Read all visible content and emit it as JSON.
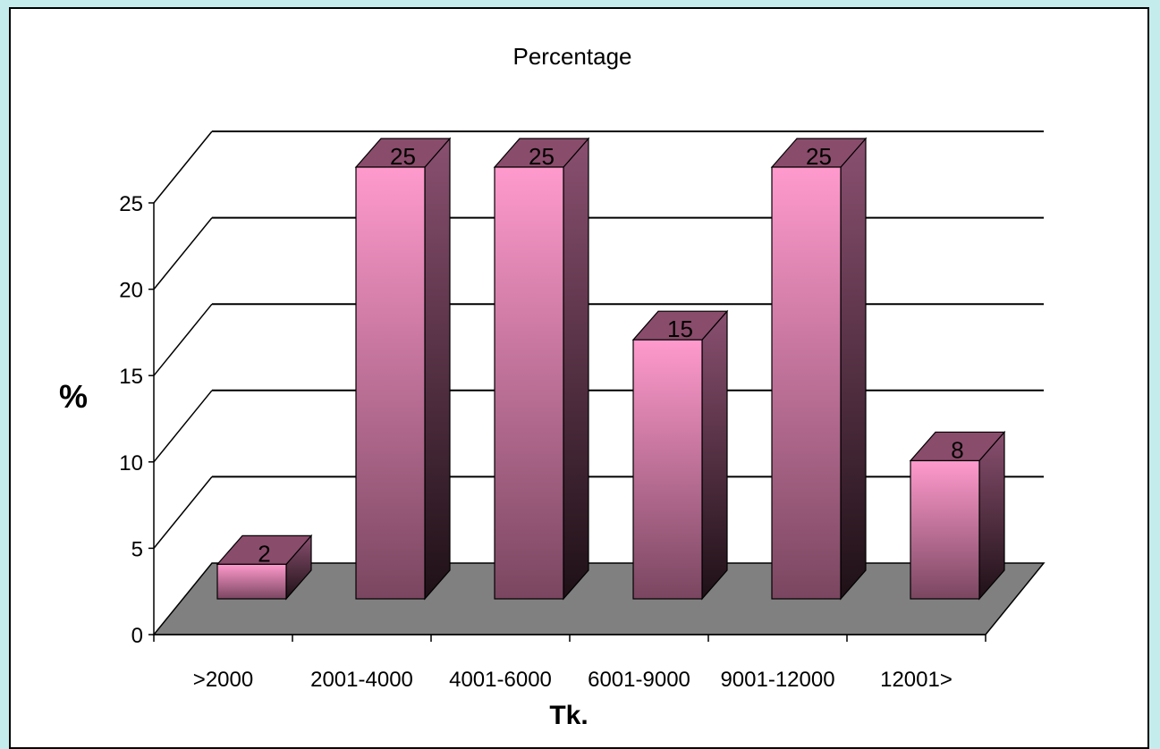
{
  "chart_data": {
    "type": "bar",
    "title": "Percentage",
    "xlabel": "Tk.",
    "ylabel": "%",
    "categories": [
      ">2000",
      "2001-4000",
      "4001-6000",
      "6001-9000",
      "9001-12000",
      "12001>"
    ],
    "values": [
      2,
      25,
      25,
      15,
      25,
      8
    ],
    "ylim": [
      0,
      25
    ],
    "yticks": [
      0,
      5,
      10,
      15,
      20,
      25
    ],
    "grid": true,
    "style": "3d",
    "colors": {
      "bar_front": "#ff9acd",
      "bar_bottom": "#7a4660",
      "bar_side": "#6e3b56",
      "bar_top": "#8a4c6b",
      "floor": "#808080"
    }
  }
}
